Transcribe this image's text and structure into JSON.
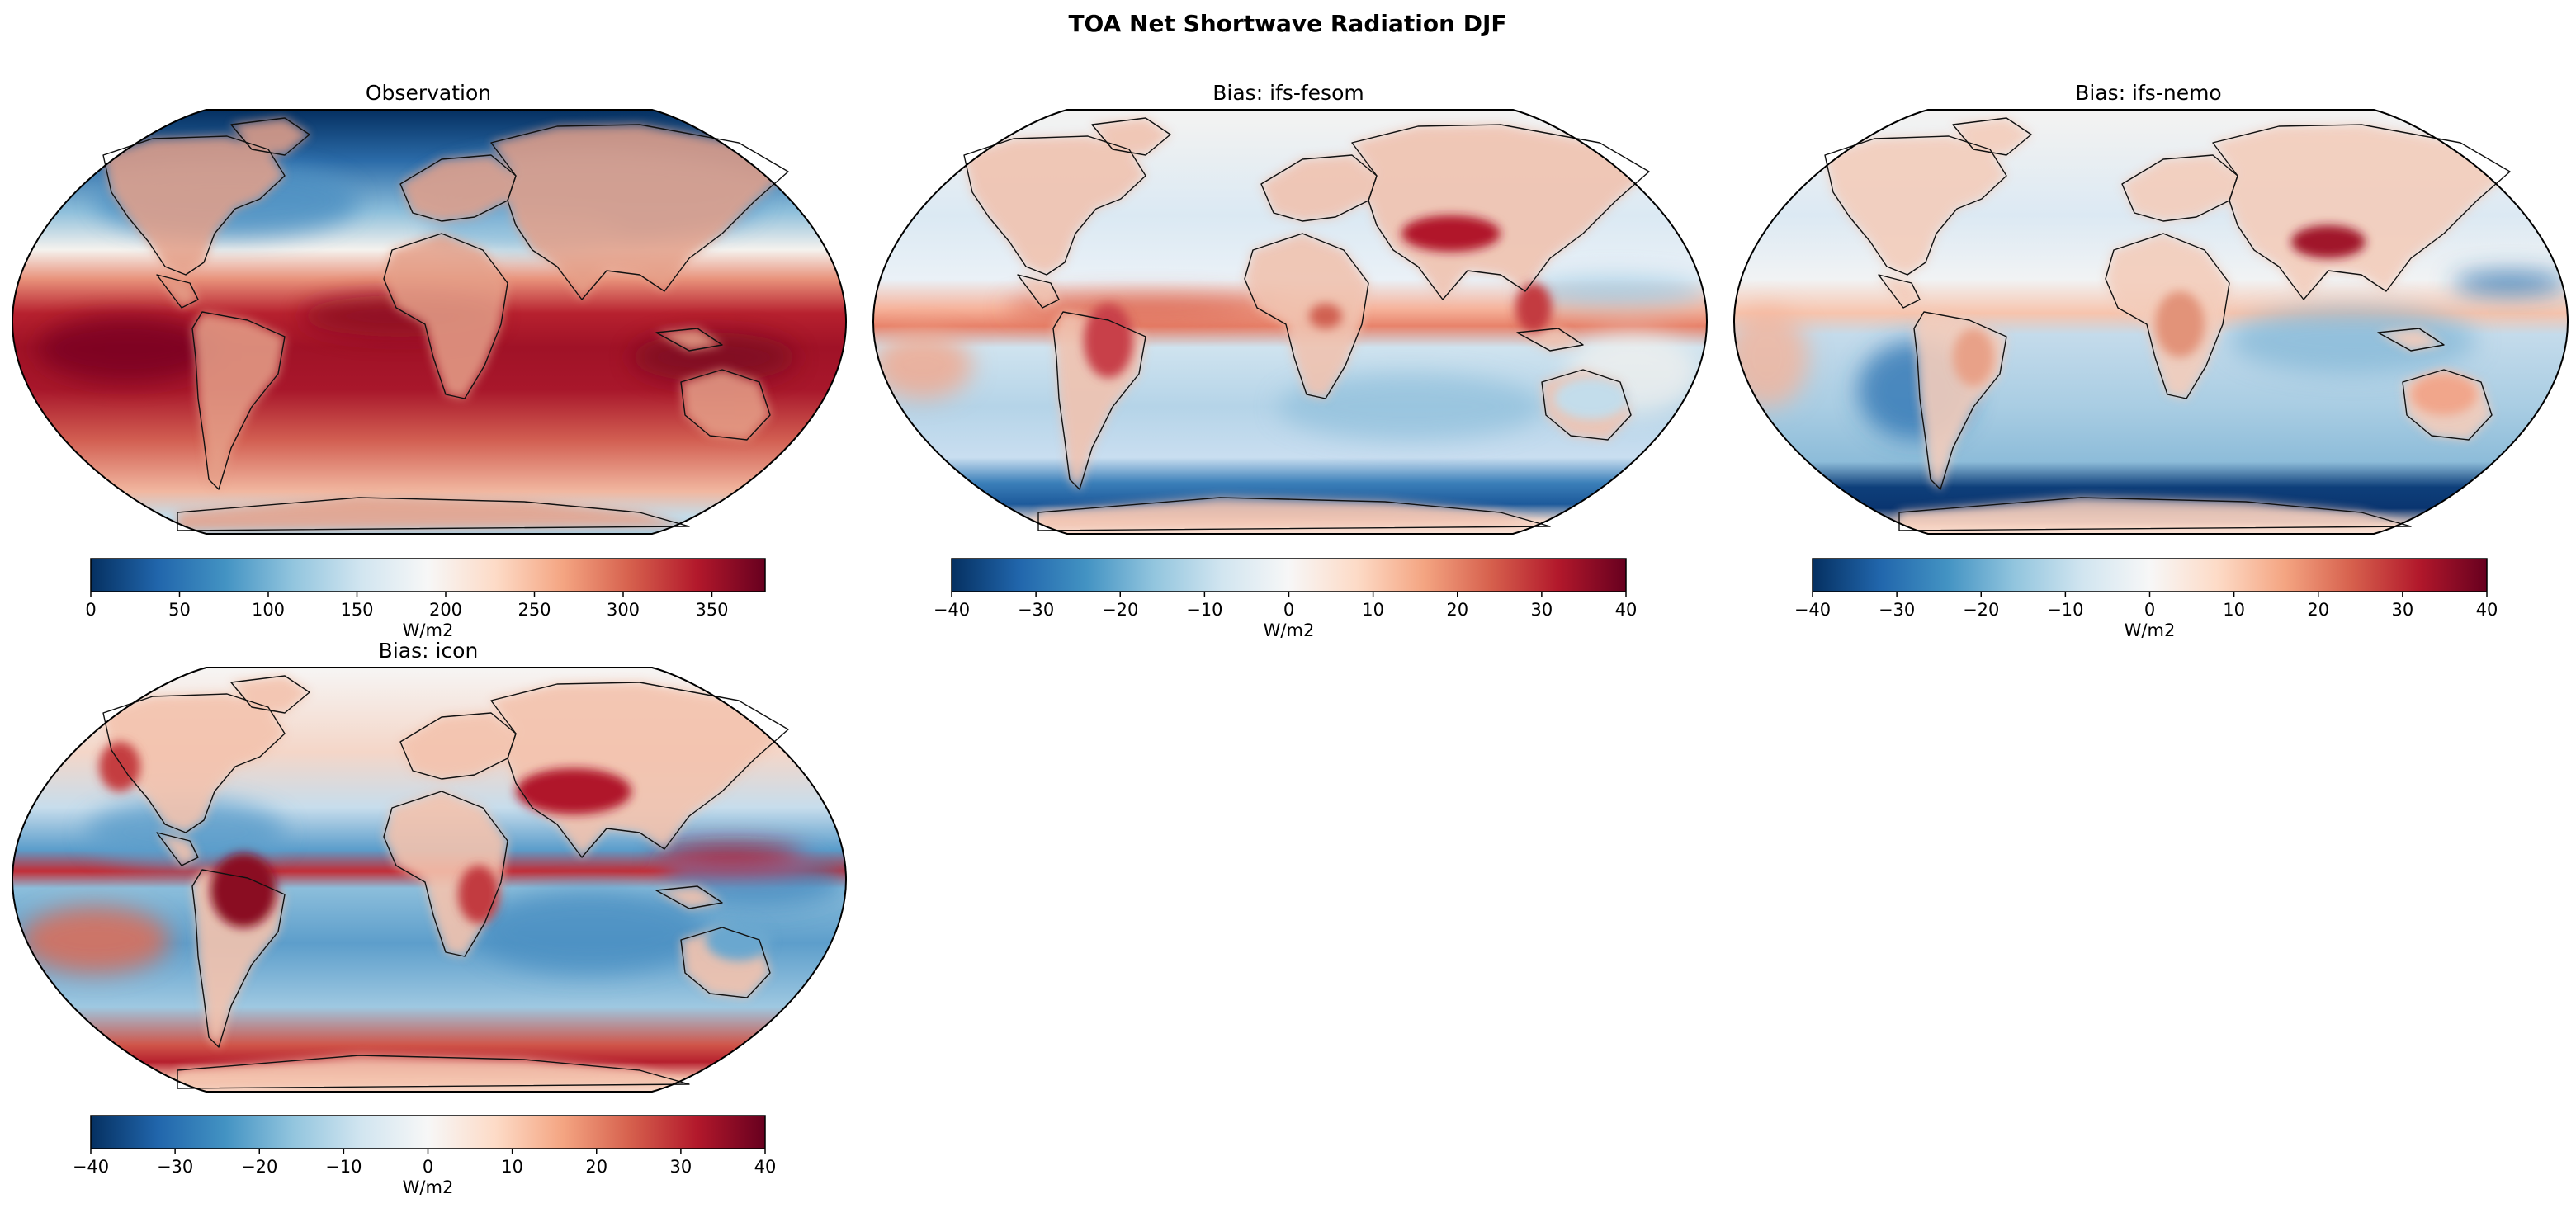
{
  "figure": {
    "title": "TOA Net Shortwave Radiation DJF"
  },
  "chart_data": [
    {
      "type": "heatmap",
      "projection": "robinson",
      "title": "Observation",
      "colormap": "RdBu_r",
      "field": "observed",
      "colorbar": {
        "label": "W/m2",
        "vmin": 0,
        "vmax": 380,
        "ticks": [
          0,
          50,
          100,
          150,
          200,
          250,
          300,
          350
        ],
        "tick_labels": [
          "0",
          "50",
          "100",
          "150",
          "200",
          "250",
          "300",
          "350"
        ]
      }
    },
    {
      "type": "heatmap",
      "projection": "robinson",
      "title": "Bias: ifs-fesom",
      "colormap": "RdBu_r",
      "field": "bias",
      "colorbar": {
        "label": "W/m2",
        "vmin": -40,
        "vmax": 40,
        "ticks": [
          -40,
          -30,
          -20,
          -10,
          0,
          10,
          20,
          30,
          40
        ],
        "tick_labels": [
          "−40",
          "−30",
          "−20",
          "−10",
          "0",
          "10",
          "20",
          "30",
          "40"
        ]
      }
    },
    {
      "type": "heatmap",
      "projection": "robinson",
      "title": "Bias: ifs-nemo",
      "colormap": "RdBu_r",
      "field": "bias",
      "colorbar": {
        "label": "W/m2",
        "vmin": -40,
        "vmax": 40,
        "ticks": [
          -40,
          -30,
          -20,
          -10,
          0,
          10,
          20,
          30,
          40
        ],
        "tick_labels": [
          "−40",
          "−30",
          "−20",
          "−10",
          "0",
          "10",
          "20",
          "30",
          "40"
        ]
      }
    },
    {
      "type": "heatmap",
      "projection": "robinson",
      "title": "Bias: icon",
      "colormap": "RdBu_r",
      "field": "bias",
      "colorbar": {
        "label": "W/m2",
        "vmin": -40,
        "vmax": 40,
        "ticks": [
          -40,
          -30,
          -20,
          -10,
          0,
          10,
          20,
          30,
          40
        ],
        "tick_labels": [
          "−40",
          "−30",
          "−20",
          "−10",
          "0",
          "10",
          "20",
          "30",
          "40"
        ]
      }
    }
  ]
}
